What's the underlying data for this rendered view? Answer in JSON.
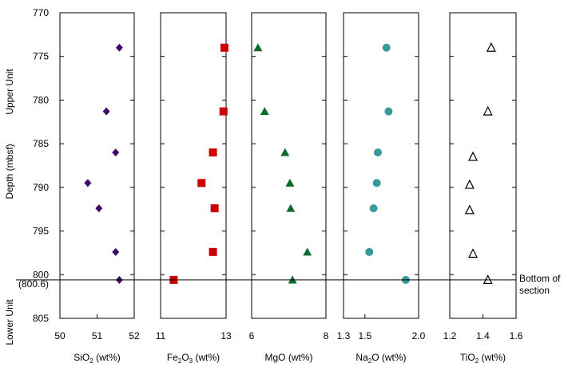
{
  "chart_data": {
    "type": "scatter",
    "shared_y": {
      "label": "Depth (mbsf)",
      "lim": [
        770,
        805
      ],
      "inverted": true,
      "ticks": [
        "770",
        "775",
        "780",
        "785",
        "790",
        "795",
        "800",
        "805"
      ],
      "tick_values": [
        770,
        775,
        780,
        785,
        790,
        795,
        800,
        805
      ],
      "extra_tick": {
        "label": "(800.6)",
        "value": 800.6
      }
    },
    "units": {
      "upper": "Upper Unit",
      "lower": "Lower Unit"
    },
    "boundary": {
      "depth": 800.6,
      "label_line1": "Bottom of",
      "label_line2": "section"
    },
    "panels": [
      {
        "series": "SiO2",
        "xlabel_main": "SiO",
        "xlabel_sub": "2",
        "xlabel_tail": " (wt%)",
        "xlim": [
          50,
          52
        ],
        "xticks": [
          "50",
          "51",
          "52"
        ],
        "xtick_values": [
          50,
          51,
          52
        ],
        "marker": "diamond",
        "color": "#3b0a6b",
        "points": [
          {
            "depth": 774.0,
            "value": 51.6
          },
          {
            "depth": 781.3,
            "value": 51.25
          },
          {
            "depth": 786.0,
            "value": 51.5
          },
          {
            "depth": 789.5,
            "value": 50.75
          },
          {
            "depth": 792.4,
            "value": 51.05
          },
          {
            "depth": 797.4,
            "value": 51.5
          },
          {
            "depth": 800.6,
            "value": 51.6
          }
        ]
      },
      {
        "series": "Fe2O3",
        "xlabel_main": "Fe",
        "xlabel_sub": "2",
        "xlabel_mid": "O",
        "xlabel_sub2": "3",
        "xlabel_tail": "",
        "xlim": [
          11,
          13
        ],
        "xticks": [
          "11",
          "13"
        ],
        "xtick_values": [
          11,
          13
        ],
        "marker": "square",
        "color": "#cc0000",
        "points": [
          {
            "depth": 774.0,
            "value": 12.95
          },
          {
            "depth": 781.3,
            "value": 12.92
          },
          {
            "depth": 786.0,
            "value": 12.6
          },
          {
            "depth": 789.5,
            "value": 12.25
          },
          {
            "depth": 792.4,
            "value": 12.65
          },
          {
            "depth": 797.4,
            "value": 12.6
          },
          {
            "depth": 800.6,
            "value": 11.4
          }
        ]
      },
      {
        "series": "MgO",
        "xlabel_main": "MgO (wt%)",
        "xlim": [
          6,
          8
        ],
        "xticks": [
          "6",
          "8"
        ],
        "xtick_values": [
          6,
          8
        ],
        "marker": "triangle",
        "color": "#0b6b2e",
        "points": [
          {
            "depth": 774.0,
            "value": 6.17
          },
          {
            "depth": 781.3,
            "value": 6.35
          },
          {
            "depth": 786.0,
            "value": 6.9
          },
          {
            "depth": 789.5,
            "value": 7.03
          },
          {
            "depth": 792.4,
            "value": 7.05
          },
          {
            "depth": 797.4,
            "value": 7.5
          },
          {
            "depth": 800.6,
            "value": 7.1
          }
        ]
      },
      {
        "series": "Na2O",
        "xlabel_main": "Na",
        "xlabel_sub": "2",
        "xlabel_tail": "O (wt%)",
        "xlim": [
          1.3,
          2.0
        ],
        "xticks": [
          "1.3",
          "1.5",
          "2.0"
        ],
        "xtick_values": [
          1.3,
          1.5,
          2.0
        ],
        "marker": "circle",
        "color": "#3a9a9a",
        "points": [
          {
            "depth": 774.0,
            "value": 1.7
          },
          {
            "depth": 781.3,
            "value": 1.72
          },
          {
            "depth": 786.0,
            "value": 1.62
          },
          {
            "depth": 789.5,
            "value": 1.61
          },
          {
            "depth": 792.4,
            "value": 1.58
          },
          {
            "depth": 797.4,
            "value": 1.54
          },
          {
            "depth": 800.6,
            "value": 1.88
          }
        ]
      },
      {
        "series": "TiO2",
        "xlabel_main": "TiO",
        "xlabel_sub": "2",
        "xlabel_tail": " (wt%)",
        "xlim": [
          1.2,
          1.6
        ],
        "xticks": [
          "1.2",
          "1.4",
          "1.6"
        ],
        "xtick_values": [
          1.2,
          1.4,
          1.6
        ],
        "marker": "open-triangle",
        "color": "#000000",
        "points": [
          {
            "depth": 774.0,
            "value": 1.45
          },
          {
            "depth": 781.3,
            "value": 1.43
          },
          {
            "depth": 786.5,
            "value": 1.34
          },
          {
            "depth": 789.7,
            "value": 1.32
          },
          {
            "depth": 792.6,
            "value": 1.32
          },
          {
            "depth": 797.6,
            "value": 1.34
          },
          {
            "depth": 800.6,
            "value": 1.43
          }
        ]
      }
    ]
  }
}
